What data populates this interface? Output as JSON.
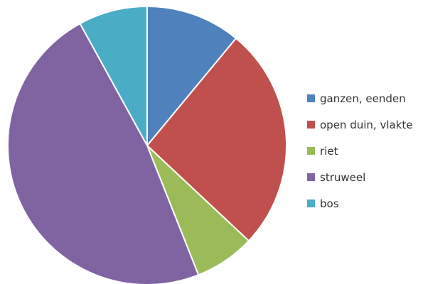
{
  "chart_data": {
    "type": "pie",
    "title": "",
    "start_angle_deg": 0,
    "direction": "clockwise",
    "legend_position": "right",
    "slices": [
      {
        "label": "ganzen, eenden",
        "value": 11,
        "color": "#4F81BD"
      },
      {
        "label": "open duin, vlakte",
        "value": 26,
        "color": "#C0504D"
      },
      {
        "label": "riet",
        "value": 7,
        "color": "#9BBB59"
      },
      {
        "label": "struweel",
        "value": 48,
        "color": "#8064A2"
      },
      {
        "label": "bos",
        "value": 8,
        "color": "#4BACC6"
      }
    ]
  }
}
